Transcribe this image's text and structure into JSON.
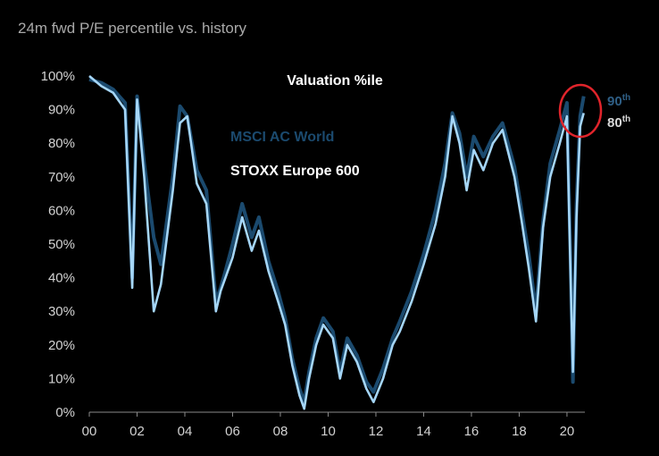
{
  "subtitle": "24m fwd P/E percentile vs. history",
  "chart_data": {
    "type": "line",
    "title": "Valuation %ile",
    "xlabel": "",
    "ylabel": "",
    "xlim": [
      2000,
      2020.75
    ],
    "ylim": [
      0,
      100
    ],
    "x_ticks": [
      "00",
      "02",
      "04",
      "06",
      "08",
      "10",
      "12",
      "14",
      "16",
      "18",
      "20"
    ],
    "y_ticks": [
      "0%",
      "10%",
      "20%",
      "30%",
      "40%",
      "50%",
      "60%",
      "70%",
      "80%",
      "90%",
      "100%"
    ],
    "legend_placement": "in-plot, upper-left",
    "grid": false,
    "series": [
      {
        "name": "MSCI AC World",
        "color": "#1b4a6e",
        "x": [
          2000.0,
          2000.5,
          2001.0,
          2001.5,
          2001.8,
          2002.0,
          2002.3,
          2002.7,
          2003.0,
          2003.5,
          2003.8,
          2004.1,
          2004.5,
          2004.9,
          2005.3,
          2005.5,
          2005.7,
          2006.0,
          2006.4,
          2006.8,
          2007.1,
          2007.5,
          2007.9,
          2008.2,
          2008.5,
          2008.8,
          2009.0,
          2009.2,
          2009.5,
          2009.8,
          2010.2,
          2010.5,
          2010.8,
          2011.2,
          2011.6,
          2011.9,
          2012.3,
          2012.7,
          2013.0,
          2013.5,
          2014.0,
          2014.5,
          2014.9,
          2015.2,
          2015.5,
          2015.8,
          2016.1,
          2016.5,
          2016.9,
          2017.3,
          2017.8,
          2018.1,
          2018.4,
          2018.7,
          2019.0,
          2019.3,
          2019.7,
          2020.0,
          2020.15,
          2020.25,
          2020.4,
          2020.55,
          2020.7
        ],
        "values": [
          99,
          98,
          96,
          92,
          40,
          94,
          74,
          52,
          44,
          70,
          91,
          88,
          72,
          66,
          33,
          37,
          42,
          50,
          62,
          52,
          58,
          45,
          36,
          28,
          16,
          7,
          3,
          12,
          22,
          28,
          24,
          12,
          22,
          17,
          9,
          6,
          13,
          22,
          27,
          36,
          47,
          60,
          74,
          89,
          83,
          70,
          82,
          76,
          82,
          86,
          73,
          60,
          47,
          30,
          57,
          74,
          84,
          92,
          44,
          9,
          62,
          88,
          94
        ]
      },
      {
        "name": "STOXX Europe 600",
        "color": "#a5d6f7",
        "x": [
          2000.0,
          2000.5,
          2001.0,
          2001.5,
          2001.8,
          2002.0,
          2002.3,
          2002.7,
          2003.0,
          2003.5,
          2003.8,
          2004.1,
          2004.5,
          2004.9,
          2005.3,
          2005.5,
          2005.7,
          2006.0,
          2006.4,
          2006.8,
          2007.1,
          2007.5,
          2007.9,
          2008.2,
          2008.5,
          2008.8,
          2009.0,
          2009.2,
          2009.5,
          2009.8,
          2010.2,
          2010.5,
          2010.8,
          2011.2,
          2011.6,
          2011.9,
          2012.3,
          2012.7,
          2013.0,
          2013.5,
          2014.0,
          2014.5,
          2014.9,
          2015.2,
          2015.5,
          2015.8,
          2016.1,
          2016.5,
          2016.9,
          2017.3,
          2017.8,
          2018.1,
          2018.4,
          2018.7,
          2019.0,
          2019.3,
          2019.7,
          2020.0,
          2020.15,
          2020.25,
          2020.4,
          2020.55,
          2020.7
        ],
        "values": [
          100,
          97,
          95,
          90,
          37,
          93,
          70,
          30,
          38,
          66,
          86,
          88,
          68,
          62,
          30,
          36,
          40,
          46,
          58,
          48,
          54,
          42,
          33,
          26,
          14,
          5,
          1,
          10,
          20,
          26,
          22,
          10,
          20,
          15,
          7,
          3,
          10,
          20,
          24,
          33,
          44,
          56,
          70,
          88,
          80,
          66,
          78,
          72,
          80,
          84,
          70,
          57,
          43,
          27,
          55,
          70,
          80,
          88,
          40,
          12,
          58,
          85,
          89
        ]
      }
    ],
    "annotations": [
      {
        "text": "MSCI AC World",
        "color": "#1b4a6e"
      },
      {
        "text": "STOXX Europe 600",
        "color": "#ffffff"
      },
      {
        "text": "90",
        "sup": "th",
        "color": "#2f5f86"
      },
      {
        "text": "80",
        "sup": "th",
        "color": "#d9d9d9"
      }
    ],
    "highlight_circle_color": "#e0242b"
  }
}
